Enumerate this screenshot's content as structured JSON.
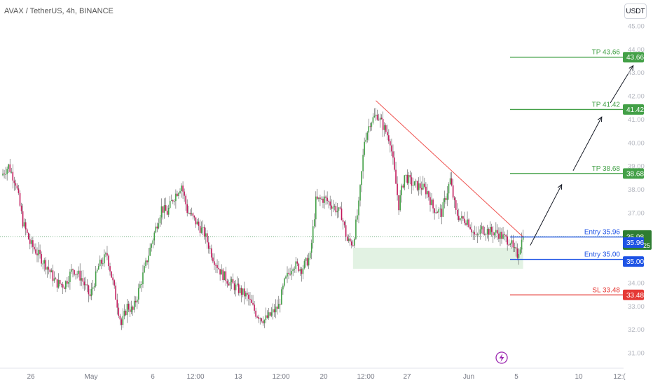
{
  "header": {
    "title": "AVAX / TetherUS, 4h, BINANCE",
    "currency": "USDT"
  },
  "chart_data": {
    "type": "candlestick",
    "symbol": "AVAX / TetherUS",
    "interval": "4h",
    "exchange": "BINANCE",
    "y_axis": {
      "range": [
        30.5,
        45.2
      ],
      "ticks": [
        "31.00",
        "32.00",
        "33.00",
        "34.00",
        "35.00",
        "36.00",
        "37.00",
        "38.00",
        "39.00",
        "40.00",
        "41.00",
        "42.00",
        "43.00",
        "44.00",
        "45.00"
      ]
    },
    "x_axis": {
      "ticks": [
        "26",
        "May",
        "6",
        "12:00",
        "13",
        "12:00",
        "20",
        "12:00",
        "27",
        "Jun",
        "5",
        "10",
        "12:("
      ]
    },
    "close_path": [
      [
        0,
        38.6
      ],
      [
        5,
        39.0
      ],
      [
        10,
        38.3
      ],
      [
        15,
        36.6
      ],
      [
        20,
        35.7
      ],
      [
        26,
        35.2
      ],
      [
        32,
        34.7
      ],
      [
        38,
        34.0
      ],
      [
        44,
        33.9
      ],
      [
        50,
        34.6
      ],
      [
        56,
        34.2
      ],
      [
        62,
        33.4
      ],
      [
        68,
        34.7
      ],
      [
        74,
        35.2
      ],
      [
        78,
        34.0
      ],
      [
        84,
        32.2
      ],
      [
        88,
        33.0
      ],
      [
        92,
        32.8
      ],
      [
        98,
        34.1
      ],
      [
        106,
        35.9
      ],
      [
        112,
        37.2
      ],
      [
        116,
        37.0
      ],
      [
        120,
        37.6
      ],
      [
        126,
        38.2
      ],
      [
        130,
        37.1
      ],
      [
        136,
        36.6
      ],
      [
        142,
        36.1
      ],
      [
        148,
        35.1
      ],
      [
        154,
        34.4
      ],
      [
        160,
        34.0
      ],
      [
        166,
        33.7
      ],
      [
        172,
        33.4
      ],
      [
        178,
        32.7
      ],
      [
        184,
        32.4
      ],
      [
        188,
        32.6
      ],
      [
        194,
        33.0
      ],
      [
        198,
        34.0
      ],
      [
        204,
        34.8
      ],
      [
        210,
        34.6
      ],
      [
        216,
        35.1
      ],
      [
        220,
        37.5
      ],
      [
        226,
        37.6
      ],
      [
        232,
        37.3
      ],
      [
        238,
        36.9
      ],
      [
        242,
        35.8
      ],
      [
        246,
        35.7
      ],
      [
        250,
        37.3
      ],
      [
        254,
        40.1
      ],
      [
        258,
        40.9
      ],
      [
        263,
        41.2
      ],
      [
        268,
        40.6
      ],
      [
        272,
        40.1
      ],
      [
        278,
        37.3
      ],
      [
        282,
        38.6
      ],
      [
        288,
        38.2
      ],
      [
        294,
        38.1
      ],
      [
        298,
        37.9
      ],
      [
        302,
        37.2
      ],
      [
        308,
        37.0
      ],
      [
        314,
        38.4
      ],
      [
        318,
        37.0
      ],
      [
        322,
        36.7
      ],
      [
        326,
        36.7
      ],
      [
        332,
        35.9
      ],
      [
        336,
        36.3
      ],
      [
        342,
        36.2
      ],
      [
        348,
        36.1
      ],
      [
        352,
        35.9
      ],
      [
        356,
        35.8
      ],
      [
        358,
        35.4
      ],
      [
        361,
        35.2
      ],
      [
        363,
        35.6
      ],
      [
        365,
        35.98
      ]
    ],
    "shapes": {
      "support_zone": {
        "x_range": [
          246,
          365
        ],
        "y_range": [
          34.6,
          35.5
        ]
      },
      "trend_line": {
        "from": [
          262,
          41.8
        ],
        "to": [
          365,
          35.96
        ]
      },
      "arrows": [
        {
          "from": [
            370,
            35.6
          ],
          "to": [
            392,
            38.2
          ]
        },
        {
          "from": [
            400,
            38.8
          ],
          "to": [
            420,
            41.1
          ]
        },
        {
          "from": [
            426,
            41.7
          ],
          "to": [
            442,
            43.3
          ]
        }
      ]
    },
    "levels": [
      {
        "label": "TP 43.66",
        "value": 43.66,
        "color": "#43a047"
      },
      {
        "label": "TP 41.42",
        "value": 41.42,
        "color": "#43a047"
      },
      {
        "label": "TP 38.68",
        "value": 38.68,
        "color": "#43a047"
      },
      {
        "label": "Entry 35.96",
        "value": 35.96,
        "color": "#1e53e5"
      },
      {
        "label": "Entry 35.00",
        "value": 35.0,
        "color": "#1e53e5"
      },
      {
        "label": "SL 33.48",
        "value": 33.48,
        "color": "#e53935"
      }
    ],
    "price_tags": [
      {
        "value": 43.66,
        "text": "43.66",
        "color": "#43a047"
      },
      {
        "value": 41.42,
        "text": "41.42",
        "color": "#43a047"
      },
      {
        "value": 38.68,
        "text": "38.68",
        "color": "#43a047"
      },
      {
        "value": 35.98,
        "text": "35.98",
        "sub": "02:02:25",
        "color": "#2e7d32"
      },
      {
        "value": 35.96,
        "text": "35.96",
        "color": "#1e53e5"
      },
      {
        "value": 35.0,
        "text": "35.00",
        "color": "#1e53e5"
      },
      {
        "value": 33.48,
        "text": "33.48",
        "color": "#e53935"
      }
    ],
    "last_price": 35.98,
    "countdown": "02:02:25"
  }
}
